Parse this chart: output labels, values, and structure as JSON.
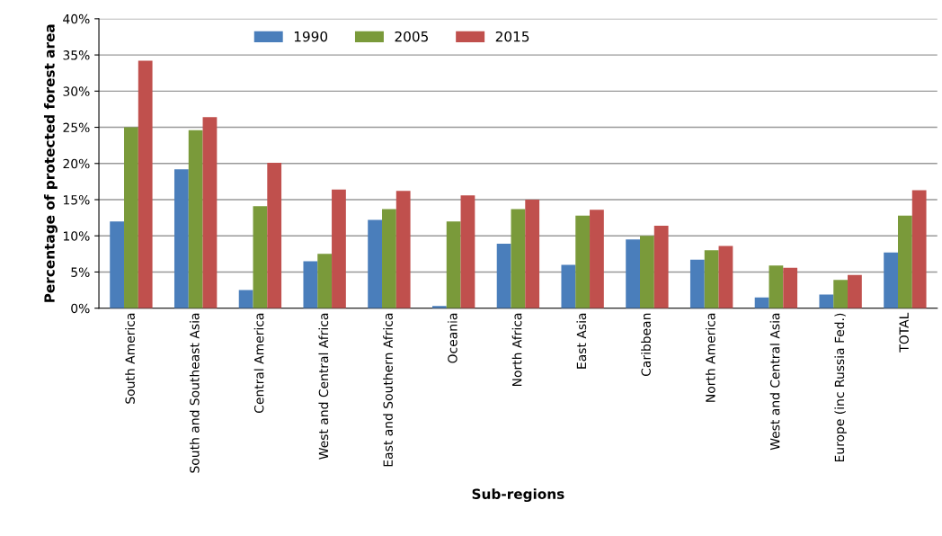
{
  "chart_data": {
    "type": "bar",
    "xlabel": "Sub-regions",
    "ylabel": "Percentage of protected forest area",
    "categories": [
      "South America",
      "South and Southeast Asia",
      "Central America",
      "West and Central Africa",
      "East and Southern Africa",
      "Oceania",
      "North Africa",
      "East Asia",
      "Caribbean",
      "North America",
      "West and Central Asia",
      "Europe (inc Russia Fed.)",
      "TOTAL"
    ],
    "series": [
      {
        "name": "1990",
        "color": "#4a7ebb",
        "values": [
          12.0,
          19.2,
          2.5,
          6.5,
          12.2,
          0.3,
          8.9,
          6.0,
          9.5,
          6.7,
          1.5,
          1.9,
          7.7
        ]
      },
      {
        "name": "2005",
        "color": "#7a9a3a",
        "values": [
          25.0,
          24.6,
          14.1,
          7.5,
          13.7,
          12.0,
          13.7,
          12.8,
          10.0,
          8.0,
          5.9,
          3.9,
          12.8
        ]
      },
      {
        "name": "2015",
        "color": "#c0504d",
        "values": [
          34.2,
          26.4,
          20.1,
          16.4,
          16.2,
          15.6,
          15.0,
          13.6,
          11.4,
          8.6,
          5.6,
          4.6,
          16.3
        ]
      }
    ],
    "ylim": [
      0,
      40
    ],
    "yticks": [
      {
        "value": 0,
        "label": "0%"
      },
      {
        "value": 5,
        "label": "5%"
      },
      {
        "value": 10,
        "label": "10%"
      },
      {
        "value": 15,
        "label": "15%"
      },
      {
        "value": 20,
        "label": "20%"
      },
      {
        "value": 25,
        "label": "25%"
      },
      {
        "value": 30,
        "label": "30%"
      },
      {
        "value": 35,
        "label": "35%"
      },
      {
        "value": 40,
        "label": "40%"
      }
    ],
    "grid": "y",
    "legend": "top"
  }
}
